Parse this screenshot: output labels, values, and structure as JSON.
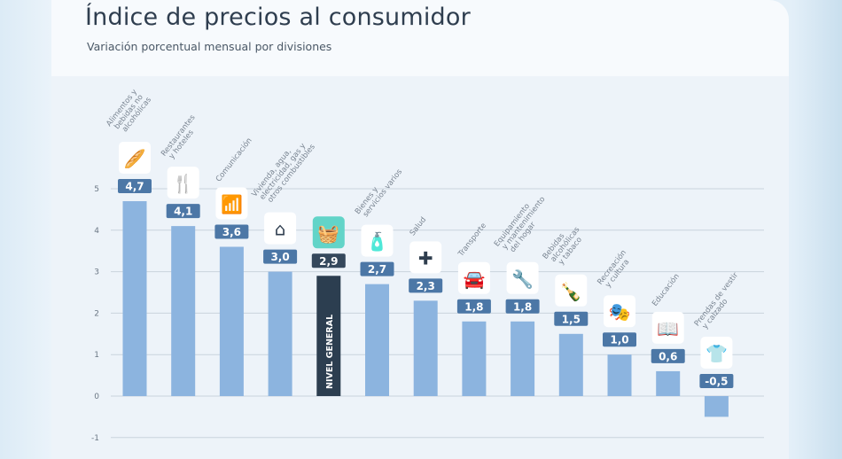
{
  "header": {
    "title": "Índice de precios al consumidor",
    "subtitle": "Variación porcentual mensual por divisiones"
  },
  "chart_data": {
    "type": "bar",
    "title": "Índice de precios al consumidor",
    "subtitle": "Variación porcentual mensual por divisiones",
    "xlabel": "",
    "ylabel": "",
    "ylim": [
      -1,
      5
    ],
    "yticks": [
      "5",
      "4",
      "3",
      "2",
      "1",
      "0",
      "-1"
    ],
    "ytick_values": [
      5,
      4,
      3,
      2,
      1,
      0,
      -1
    ],
    "grid": true,
    "categories": [
      [
        "Alimentos y",
        "bebidas no",
        "alcohólicas"
      ],
      [
        "Restaurantes",
        "y hoteles"
      ],
      [
        "Comunicación"
      ],
      [
        "Vivienda, agua,",
        "electricidad, gas y",
        "otros combustibles"
      ],
      [
        "NIVEL GENERAL"
      ],
      [
        "Bienes y",
        "servicios varios"
      ],
      [
        "Salud"
      ],
      [
        "Transporte"
      ],
      [
        "Equipamiento",
        "y mantenimiento",
        "del hogar"
      ],
      [
        "Bebidas",
        "alcohólicas",
        "y tabaco"
      ],
      [
        "Recreación",
        "y cultura"
      ],
      [
        "Educación"
      ],
      [
        "Prendas de vestir",
        "y calzado"
      ]
    ],
    "values": [
      4.7,
      4.1,
      3.6,
      3.0,
      2.9,
      2.7,
      2.3,
      1.8,
      1.8,
      1.5,
      1.0,
      0.6,
      -0.5
    ],
    "value_labels": [
      "4,7",
      "4,1",
      "3,6",
      "3,0",
      "2,9",
      "2,7",
      "2,3",
      "1,8",
      "1,8",
      "1,5",
      "1,0",
      "0,6",
      "-0,5"
    ],
    "icons": [
      "food-basket-icon",
      "restaurant-hotel-icon",
      "wifi-icon",
      "house-utilities-icon",
      "shopping-basket-icon",
      "personal-care-icon",
      "health-cross-icon",
      "car-icon",
      "tools-icon",
      "bottle-glass-icon",
      "theater-masks-icon",
      "book-icon",
      "tshirt-icon"
    ],
    "highlight_index": 4,
    "colors": {
      "bar": "#8cb4df",
      "highlight_bar": "#2c3e50",
      "badge": "#4c77a6",
      "highlight_badge": "#35485c",
      "highlight_icon_bg": "#62d4c8",
      "grid": "#c9d3dd"
    }
  }
}
